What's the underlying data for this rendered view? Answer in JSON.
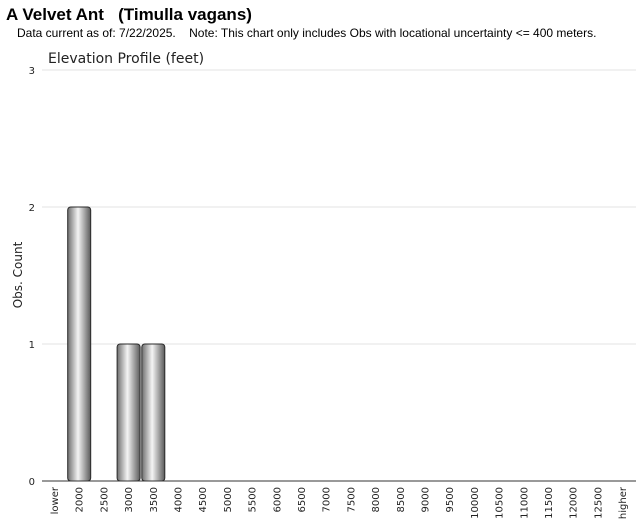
{
  "header": {
    "title": "A Velvet Ant   (Timulla vagans)",
    "subtitle": "Data current as of: 7/22/2025.    Note: This chart only includes Obs with locational uncertainty <= 400 meters."
  },
  "chart_data": {
    "type": "bar",
    "title": "Elevation Profile (feet)",
    "xlabel": "",
    "ylabel": "Obs. Count",
    "ylim": [
      0,
      3
    ],
    "yticks": [
      0,
      1,
      2,
      3
    ],
    "grid": true,
    "categories": [
      "lower",
      "2000",
      "2500",
      "3000",
      "3500",
      "4000",
      "4500",
      "5000",
      "5500",
      "6000",
      "6500",
      "7000",
      "7500",
      "8000",
      "8500",
      "9000",
      "9500",
      "10000",
      "10500",
      "11000",
      "11500",
      "12000",
      "12500",
      "higher"
    ],
    "values": [
      0,
      2,
      0,
      1,
      1,
      0,
      0,
      0,
      0,
      0,
      0,
      0,
      0,
      0,
      0,
      0,
      0,
      0,
      0,
      0,
      0,
      0,
      0,
      0
    ],
    "bar_color": "#9a9a9a"
  }
}
